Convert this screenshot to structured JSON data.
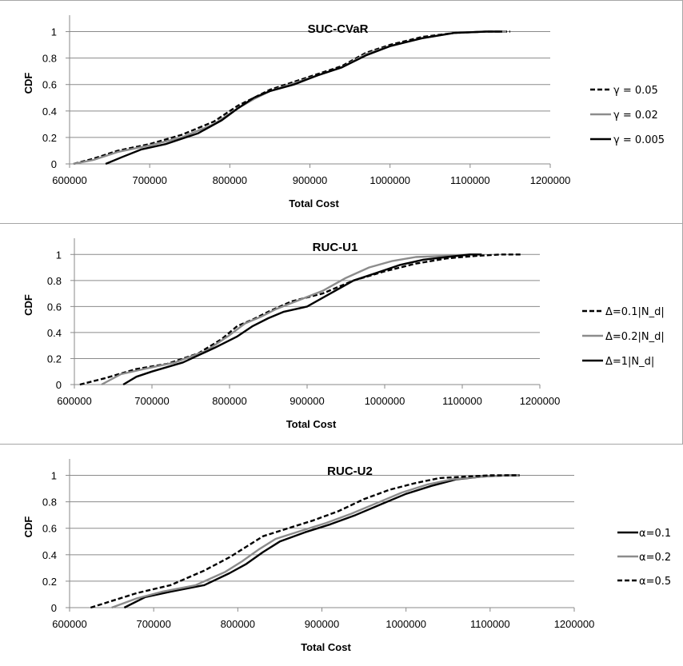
{
  "chart_data": [
    {
      "type": "line",
      "title": "SUC-CVaR",
      "xlabel": "Total Cost",
      "ylabel": "CDF",
      "xlim": [
        600000,
        1200000
      ],
      "ylim": [
        0,
        1.1
      ],
      "x_ticks": [
        "600000",
        "700000",
        "800000",
        "900000",
        "1000000",
        "1100000",
        "1200000"
      ],
      "y_ticks": [
        "0",
        "0.2",
        "0.4",
        "0.6",
        "0.8",
        "1"
      ],
      "legend_position": "right",
      "series": [
        {
          "name": "γ = 0.05",
          "color": "#000000",
          "style": "dashed",
          "x": [
            605000,
            630000,
            660000,
            700000,
            740000,
            780000,
            810000,
            830000,
            850000,
            880000,
            910000,
            940000,
            970000,
            1000000,
            1040000,
            1080000,
            1120000,
            1150000
          ],
          "y": [
            0,
            0.04,
            0.1,
            0.15,
            0.22,
            0.32,
            0.44,
            0.5,
            0.56,
            0.62,
            0.68,
            0.74,
            0.84,
            0.9,
            0.96,
            0.99,
            1.0,
            1.0
          ]
        },
        {
          "name": "γ = 0.02",
          "color": "#8c8c8c",
          "style": "solid",
          "x": [
            605000,
            630000,
            660000,
            700000,
            740000,
            780000,
            810000,
            830000,
            850000,
            880000,
            910000,
            940000,
            970000,
            1000000,
            1040000,
            1080000,
            1120000,
            1145000
          ],
          "y": [
            0,
            0.03,
            0.09,
            0.14,
            0.2,
            0.3,
            0.42,
            0.49,
            0.55,
            0.61,
            0.67,
            0.73,
            0.83,
            0.89,
            0.95,
            0.99,
            1.0,
            1.0
          ]
        },
        {
          "name": "γ = 0.005",
          "color": "#000000",
          "style": "solid",
          "x": [
            645000,
            665000,
            690000,
            720000,
            760000,
            790000,
            810000,
            830000,
            850000,
            880000,
            910000,
            940000,
            970000,
            1000000,
            1040000,
            1080000,
            1120000,
            1140000
          ],
          "y": [
            0,
            0.05,
            0.11,
            0.15,
            0.23,
            0.33,
            0.42,
            0.5,
            0.55,
            0.6,
            0.67,
            0.73,
            0.82,
            0.89,
            0.95,
            0.99,
            1.0,
            1.0
          ]
        }
      ]
    },
    {
      "type": "line",
      "title": "RUC-U1",
      "xlabel": "Total Cost",
      "ylabel": "CDF",
      "xlim": [
        600000,
        1200000
      ],
      "ylim": [
        0,
        1.1
      ],
      "x_ticks": [
        "600000",
        "700000",
        "800000",
        "900000",
        "1000000",
        "1100000",
        "1200000"
      ],
      "y_ticks": [
        "0",
        "0.2",
        "0.4",
        "0.6",
        "0.8",
        "1"
      ],
      "legend_position": "right",
      "series": [
        {
          "name": "Δ=0.1|N_d|",
          "color": "#000000",
          "style": "dashed",
          "x": [
            607000,
            640000,
            680000,
            720000,
            760000,
            790000,
            810000,
            830000,
            850000,
            880000,
            920000,
            960000,
            1000000,
            1040000,
            1080000,
            1120000,
            1150000,
            1175000
          ],
          "y": [
            0,
            0.05,
            0.12,
            0.16,
            0.24,
            0.35,
            0.45,
            0.5,
            0.56,
            0.64,
            0.7,
            0.8,
            0.87,
            0.93,
            0.97,
            0.99,
            1.0,
            1.0
          ]
        },
        {
          "name": "Δ=0.2|N_d|",
          "color": "#8c8c8c",
          "style": "solid",
          "x": [
            635000,
            660000,
            690000,
            730000,
            770000,
            800000,
            820000,
            840000,
            860000,
            890000,
            920000,
            950000,
            980000,
            1010000,
            1040000,
            1080000,
            1110000,
            1125000
          ],
          "y": [
            0,
            0.08,
            0.12,
            0.17,
            0.26,
            0.38,
            0.47,
            0.52,
            0.58,
            0.65,
            0.72,
            0.82,
            0.9,
            0.95,
            0.98,
            0.99,
            1.0,
            1.0
          ]
        },
        {
          "name": "Δ=1|N_d|",
          "color": "#000000",
          "style": "solid",
          "x": [
            663000,
            680000,
            700000,
            740000,
            780000,
            810000,
            830000,
            850000,
            870000,
            900000,
            930000,
            960000,
            990000,
            1020000,
            1050000,
            1080000,
            1110000,
            1125000
          ],
          "y": [
            0,
            0.06,
            0.1,
            0.17,
            0.28,
            0.37,
            0.45,
            0.51,
            0.56,
            0.6,
            0.7,
            0.8,
            0.86,
            0.92,
            0.96,
            0.98,
            1.0,
            1.0
          ]
        }
      ]
    },
    {
      "type": "line",
      "title": "RUC-U2",
      "xlabel": "Total Cost",
      "ylabel": "CDF",
      "xlim": [
        600000,
        1200000
      ],
      "ylim": [
        0,
        1.1
      ],
      "x_ticks": [
        "600000",
        "700000",
        "800000",
        "900000",
        "1000000",
        "1100000",
        "1200000"
      ],
      "y_ticks": [
        "0",
        "0.2",
        "0.4",
        "0.6",
        "0.8",
        "1"
      ],
      "legend_position": "right",
      "series": [
        {
          "name": "α=0.1",
          "color": "#000000",
          "style": "solid",
          "x": [
            665000,
            690000,
            720000,
            760000,
            790000,
            810000,
            830000,
            850000,
            880000,
            910000,
            940000,
            970000,
            1000000,
            1030000,
            1060000,
            1090000,
            1120000,
            1135000
          ],
          "y": [
            0,
            0.08,
            0.12,
            0.17,
            0.26,
            0.33,
            0.42,
            0.5,
            0.57,
            0.63,
            0.7,
            0.78,
            0.86,
            0.92,
            0.97,
            0.99,
            1.0,
            1.0
          ]
        },
        {
          "name": "α=0.2",
          "color": "#8c8c8c",
          "style": "solid",
          "x": [
            650000,
            680000,
            710000,
            750000,
            785000,
            805000,
            825000,
            845000,
            875000,
            905000,
            935000,
            965000,
            995000,
            1025000,
            1055000,
            1090000,
            1120000,
            1135000
          ],
          "y": [
            0,
            0.07,
            0.12,
            0.17,
            0.27,
            0.35,
            0.44,
            0.52,
            0.58,
            0.64,
            0.71,
            0.79,
            0.87,
            0.93,
            0.97,
            0.99,
            1.0,
            1.0
          ]
        },
        {
          "name": "α=0.5",
          "color": "#000000",
          "style": "dashed",
          "x": [
            625000,
            650000,
            680000,
            720000,
            760000,
            790000,
            810000,
            830000,
            860000,
            890000,
            920000,
            950000,
            980000,
            1010000,
            1040000,
            1070000,
            1100000,
            1135000
          ],
          "y": [
            0,
            0.05,
            0.11,
            0.17,
            0.28,
            0.38,
            0.46,
            0.54,
            0.6,
            0.66,
            0.73,
            0.82,
            0.89,
            0.94,
            0.98,
            0.99,
            1.0,
            1.0
          ]
        }
      ]
    }
  ]
}
